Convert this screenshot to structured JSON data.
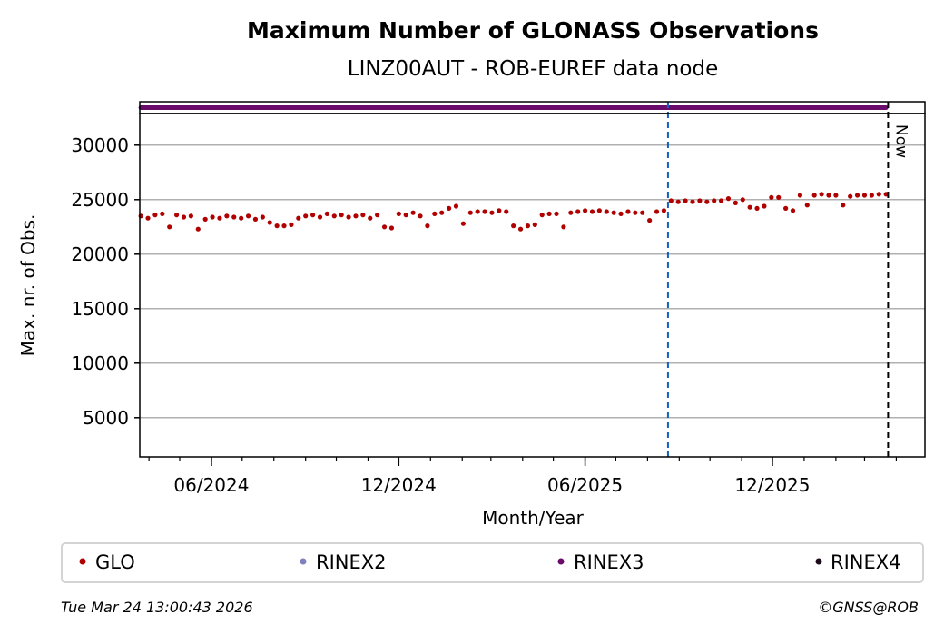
{
  "chart_data": {
    "type": "scatter",
    "title": "Maximum Number of GLONASS Observations",
    "subtitle": "LINZ00AUT - ROB-EUREF data node",
    "xlabel": "Month/Year",
    "ylabel": "Max. nr. of Obs.",
    "xlim": [
      "2024-03-23",
      "2026-04-29"
    ],
    "ylim": [
      1400,
      32900
    ],
    "yticks": [
      5000,
      10000,
      15000,
      20000,
      25000,
      30000
    ],
    "xticks": [
      {
        "date": "2024-06-01",
        "label": "06/2024"
      },
      {
        "date": "2024-12-01",
        "label": "12/2024"
      },
      {
        "date": "2025-06-01",
        "label": "06/2025"
      },
      {
        "date": "2025-12-01",
        "label": "12/2025"
      }
    ],
    "grid": "y",
    "series": [
      {
        "name": "GLO",
        "color": "#b00000",
        "start_date": "2024-03-24",
        "interval_days": 7,
        "values": [
          23500,
          23300,
          23600,
          23700,
          22500,
          23600,
          23400,
          23500,
          22300,
          23200,
          23400,
          23300,
          23500,
          23400,
          23300,
          23500,
          23200,
          23400,
          22900,
          22600,
          22600,
          22700,
          23300,
          23500,
          23600,
          23400,
          23700,
          23500,
          23600,
          23400,
          23500,
          23600,
          23300,
          23600,
          22500,
          22400,
          23700,
          23600,
          23800,
          23500,
          22600,
          23700,
          23800,
          24200,
          24400,
          22800,
          23800,
          23900,
          23900,
          23800,
          24000,
          23900,
          22600,
          22300,
          22600,
          22700,
          23600,
          23700,
          23700,
          22500,
          23800,
          23900,
          24000,
          23900,
          24000,
          23900,
          23800,
          23700,
          23900,
          23800,
          23800,
          23100,
          23900,
          24000,
          24900,
          24800,
          24900,
          24800,
          24900,
          24800,
          24900,
          24900,
          25100,
          24700,
          25000,
          24300,
          24200,
          24400,
          25200,
          25200,
          24200,
          24000,
          25400,
          24500,
          25400,
          25500,
          25400,
          25400,
          24500,
          25300,
          25400,
          25400,
          25400,
          25500,
          25500
        ]
      }
    ],
    "availability_strip": {
      "name": "RINEX3",
      "color": "#6a0a6a",
      "start_date": "2024-03-24",
      "end_date": "2026-03-22"
    },
    "vlines": [
      {
        "date": "2025-08-21",
        "color": "#1060c0",
        "style": "dashed",
        "label": ""
      },
      {
        "date": "2026-03-24",
        "color": "#000000",
        "style": "dashed",
        "label": "Now"
      }
    ],
    "legend": {
      "placement": "bottom",
      "entries": [
        {
          "label": "GLO",
          "color": "#b00000"
        },
        {
          "label": "RINEX2",
          "color": "#8080c0"
        },
        {
          "label": "RINEX3",
          "color": "#6a0a6a"
        },
        {
          "label": "RINEX4",
          "color": "#1a0a1a"
        }
      ]
    }
  },
  "footer": {
    "timestamp": "Tue Mar 24 13:00:43 2026",
    "copyright": "©GNSS@ROB"
  }
}
